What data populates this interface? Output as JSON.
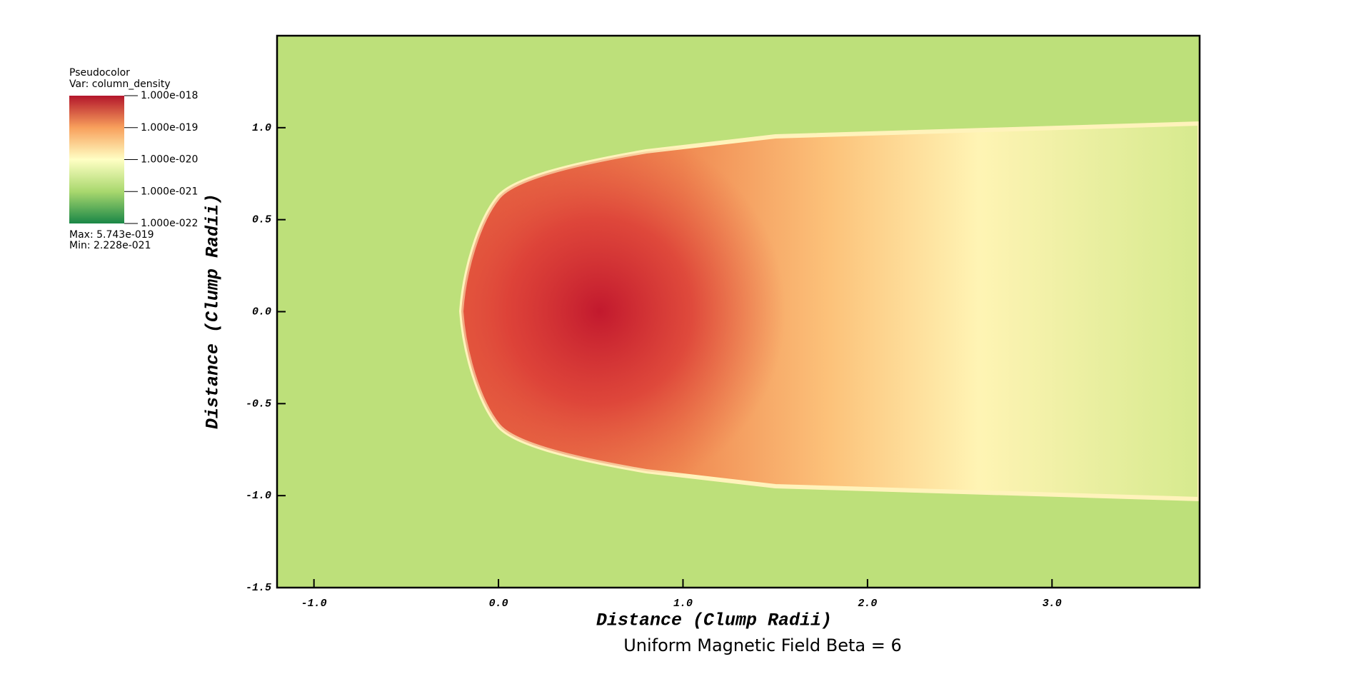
{
  "chart_data": {
    "type": "heatmap",
    "title": "Uniform Magnetic Field Beta = 6",
    "xlabel": "Distance (Clump Radii)",
    "ylabel": "Distance (Clump Radii)",
    "xlim": [
      -1.2,
      3.8
    ],
    "ylim": [
      -1.5,
      1.5
    ],
    "xticks": [
      {
        "value": -1,
        "label": "-1.0"
      },
      {
        "value": 0,
        "label": "0.0"
      },
      {
        "value": 1,
        "label": "1.0"
      },
      {
        "value": 2,
        "label": "2.0"
      },
      {
        "value": 3,
        "label": "3.0"
      }
    ],
    "yticks": [
      {
        "value": 1,
        "label": "1.0"
      },
      0.5,
      {
        "value": 0,
        "label": "0.0"
      },
      -0.5,
      {
        "value": -1,
        "label": "-1.0"
      },
      -1.5
    ],
    "colorbar": {
      "title": "Pseudocolor",
      "variable": "Var: column_density",
      "log": true,
      "lim": [
        1e-22,
        1e-18
      ],
      "ticks": [
        {
          "value": 1e-18,
          "label": "1.000e-018"
        },
        {
          "value": 1e-19,
          "label": "1.000e-019"
        },
        {
          "value": 1e-20,
          "label": "1.000e-020"
        },
        {
          "value": 1e-21,
          "label": "1.000e-021"
        },
        {
          "value": 1e-22,
          "label": "1.000e-022"
        }
      ],
      "colors": [
        "#1a8747",
        "#a9d86e",
        "#ffffc4",
        "#f8a05c",
        "#b3162b"
      ],
      "max": "Max:  5.743e-019",
      "min": "Min:  2.228e-021"
    }
  }
}
